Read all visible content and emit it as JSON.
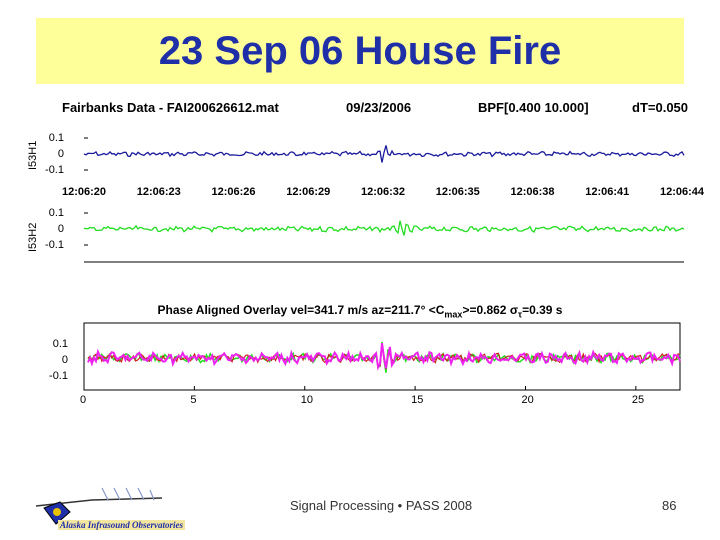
{
  "slide": {
    "title": "23 Sep 06 House Fire",
    "footer": "Signal Processing • PASS 2008",
    "page_number": "86",
    "logo_text": "Alaska Infrasound Observatories",
    "colors": {
      "title_band": "#ffff99",
      "title_text": "#1f2fa8",
      "blue_trace": "#1a1a9c",
      "green_trace": "#22dd22",
      "magenta_trace": "#ee22ee",
      "red_trace": "#cc2222"
    }
  },
  "figure_header": {
    "source": "Fairbanks Data - FAI200626612.mat",
    "date": "09/23/2006",
    "filter": "BPF[0.400 10.000]",
    "dt": "dT=0.050"
  },
  "overlay": {
    "title_parts": {
      "main": "Phase Aligned Overlay   vel=341.7 m/s   az=211.7°   <C",
      "sub": "max",
      "mid": ">=0.862   σ",
      "tau": "τ",
      "end": "=0.39 s"
    }
  },
  "chart_data": [
    {
      "type": "line",
      "channel": "I53H1",
      "y_ticks": [
        "0.1",
        "0",
        "-0.1"
      ],
      "ylim": [
        -0.1,
        0.1
      ],
      "series": [
        {
          "color": "#1a1a9c",
          "event_peak_index": 0.5
        }
      ]
    },
    {
      "type": "line",
      "channel": "I53H2",
      "x_tick_labels": [
        "12:06:20",
        "12:06:23",
        "12:06:26",
        "12:06:29",
        "12:06:32",
        "12:06:35",
        "12:06:38",
        "12:06:41",
        "12:06:44"
      ],
      "y_ticks": [
        "0.1",
        "0",
        "-0.1"
      ],
      "ylim": [
        -0.1,
        0.1
      ],
      "series": [
        {
          "color": "#22dd22"
        }
      ]
    },
    {
      "type": "line",
      "y_ticks": [
        "0.1",
        "0",
        "-0.1"
      ],
      "ylim": [
        -0.15,
        0.15
      ],
      "x_ticks": [
        "0",
        "5",
        "10",
        "15",
        "20",
        "25"
      ],
      "xlim": [
        0,
        27
      ],
      "series": [
        {
          "color": "#22dd22"
        },
        {
          "color": "#cc2222"
        },
        {
          "color": "#ee22ee"
        }
      ]
    }
  ]
}
